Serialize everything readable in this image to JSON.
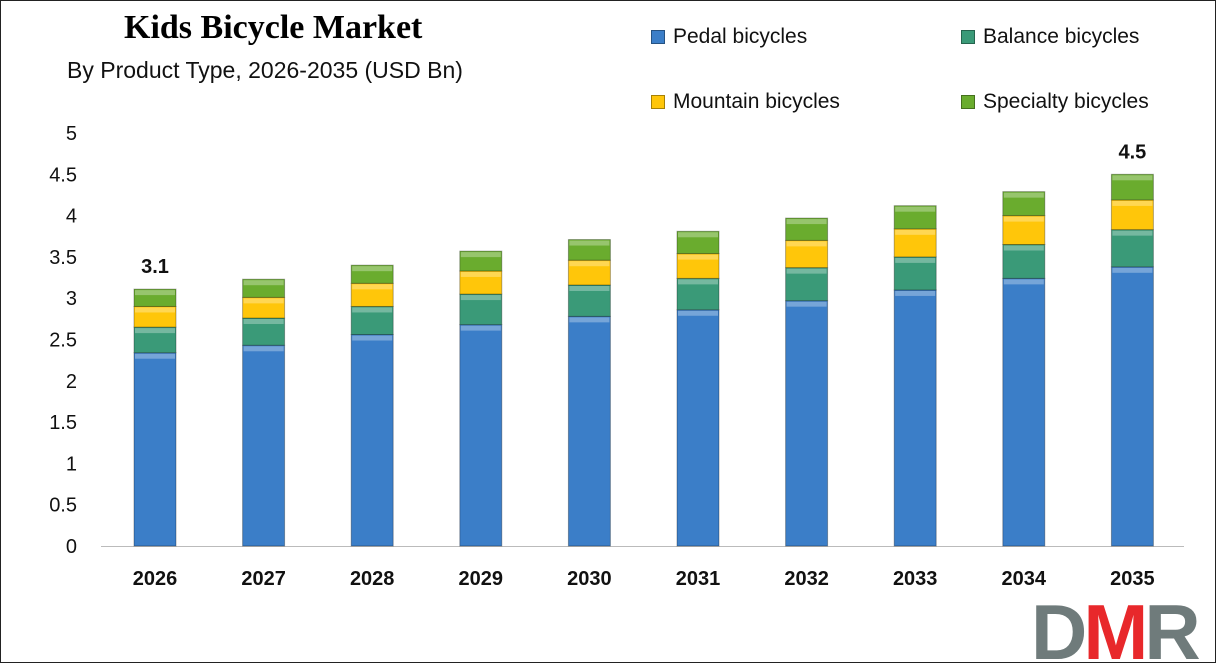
{
  "chart_data": {
    "type": "bar",
    "stacked": true,
    "title": "Kids Bicycle Market",
    "subtitle": "By Product Type, 2026-2035 (USD Bn)",
    "categories": [
      "2026",
      "2027",
      "2028",
      "2029",
      "2030",
      "2031",
      "2032",
      "2033",
      "2034",
      "2035"
    ],
    "series": [
      {
        "name": "Pedal bicycles",
        "color": "#3b7ec8",
        "values": [
          2.34,
          2.43,
          2.56,
          2.68,
          2.78,
          2.86,
          2.97,
          3.1,
          3.24,
          3.38
        ]
      },
      {
        "name": "Balance bicycles",
        "color": "#3a9a78",
        "values": [
          0.31,
          0.33,
          0.34,
          0.37,
          0.38,
          0.38,
          0.4,
          0.4,
          0.41,
          0.45
        ]
      },
      {
        "name": "Mountain bicycles",
        "color": "#ffc60a",
        "values": [
          0.25,
          0.25,
          0.28,
          0.28,
          0.3,
          0.3,
          0.33,
          0.34,
          0.35,
          0.36
        ]
      },
      {
        "name": "Specialty bicycles",
        "color": "#6aac2e",
        "values": [
          0.21,
          0.22,
          0.22,
          0.24,
          0.25,
          0.27,
          0.27,
          0.28,
          0.29,
          0.31
        ]
      }
    ],
    "data_labels": [
      {
        "category": "2026",
        "text": "3.1"
      },
      {
        "category": "2035",
        "text": "4.5"
      }
    ],
    "yticks": [
      "0",
      "0.5",
      "1",
      "1.5",
      "2",
      "2.5",
      "3",
      "3.5",
      "4",
      "4.5",
      "5"
    ],
    "ylim": [
      0,
      5
    ],
    "grid": false,
    "legend": "top-right"
  },
  "logo": {
    "text": "DMR",
    "letters": [
      "D",
      "M",
      "R"
    ],
    "colors": [
      "#6f7b7b",
      "#e8282b",
      "#6f7b7b"
    ]
  }
}
